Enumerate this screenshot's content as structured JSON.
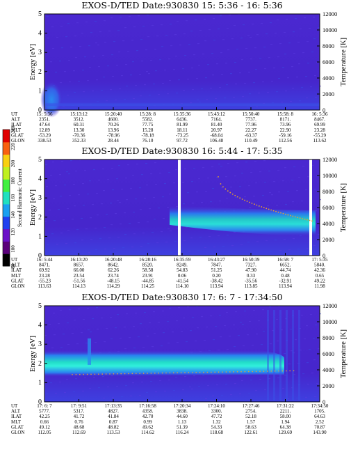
{
  "colors": {
    "background_low": "#4a2ad0",
    "low": "#3a52e8",
    "mid": "#2a8af0",
    "high": "#22d8c8",
    "peak": "#30f0e0",
    "dots": "#e8a030",
    "gap": "#ffffff"
  },
  "colorbar": {
    "label": "Second Harmonic Current",
    "ticks": [
      "80",
      "100",
      "120",
      "140",
      "160",
      "180",
      "200",
      "220",
      "240"
    ],
    "colors": [
      "#000000",
      "#5a007a",
      "#6a10c8",
      "#2040f0",
      "#1aa0f0",
      "#20e0c0",
      "#40f040",
      "#c0f020",
      "#f8d010",
      "#f86010",
      "#e00000"
    ]
  },
  "table_labels": [
    "UT",
    "ALT",
    "ILAT",
    "MLT",
    "GLAT",
    "GLON"
  ],
  "chart_data": [
    {
      "type": "heatmap",
      "title": "EXOS-D/TED    Date:930830  15: 5:36 - 16: 5:36",
      "ylabel": "Energy [eV]",
      "ylim": [
        0,
        5
      ],
      "yticks": [
        "0",
        "1",
        "2",
        "3",
        "4",
        "5"
      ],
      "y2label": "Temperature [K]",
      "y2lim": [
        0,
        12000
      ],
      "y2ticks": [
        "0",
        "2000",
        "4000",
        "6000",
        "8000",
        "10000",
        "12000"
      ],
      "columns": [
        [
          "15: 5:36",
          "2351.",
          "47.64",
          "12.89",
          "-53.29",
          "338.53"
        ],
        [
          "15:13:12",
          "3512.",
          "60.31",
          "13.30",
          "-70.36",
          "352.33"
        ],
        [
          "15:20:40",
          "4600.",
          "70.26",
          "13.96",
          "-78.96",
          "28.44"
        ],
        [
          "15:28: 8",
          "5582.",
          "77.75",
          "15.28",
          "-78.18",
          "76.10"
        ],
        [
          "15:35:36",
          "6436.",
          "81.99",
          "18.11",
          "-73.25",
          "97.72"
        ],
        [
          "15:43:12",
          "7164.",
          "81.40",
          "20.97",
          "-68.04",
          "106.48"
        ],
        [
          "15:50:40",
          "7737.",
          "77.96",
          "22.27",
          "-63.37",
          "110.49"
        ],
        [
          "15:58: 8",
          "8171.",
          "73.96",
          "22.90",
          "-59.16",
          "112.56"
        ],
        [
          "16: 5:36",
          "8467.",
          "69.99",
          "23.28",
          "-55.29",
          "113.62"
        ]
      ]
    },
    {
      "type": "heatmap",
      "title": "EXOS-D/TED    Date:930830  16: 5:44 - 17: 5:35",
      "ylabel": "Energy [eV]",
      "ylim": [
        0,
        5
      ],
      "yticks": [
        "0",
        "1",
        "2",
        "3",
        "4",
        "5"
      ],
      "y2label": "Temperature [K]",
      "y2lim": [
        0,
        12000
      ],
      "y2ticks": [
        "0",
        "2000",
        "4000",
        "6000",
        "8000",
        "10000",
        "12000"
      ],
      "columns": [
        [
          "16: 5:44",
          "8471.",
          "69.92",
          "23.28",
          "-55.23",
          "113.63"
        ],
        [
          "16:13:20",
          "8657.",
          "66.00",
          "23.54",
          "-51.56",
          "114.13"
        ],
        [
          "16:20:48",
          "8642.",
          "62.26",
          "23.74",
          "-48.15",
          "114.29"
        ],
        [
          "16:28:16",
          "8520.",
          "58.58",
          "23.91",
          "-44.85",
          "114.25"
        ],
        [
          "16:35:59",
          "8249.",
          "54.83",
          "0.06",
          "-41.54",
          "114.10"
        ],
        [
          "16:43:27",
          "7847.",
          "51.25",
          "0.20",
          "-38.42",
          "113.94"
        ],
        [
          "16:50:39",
          "7327.",
          "47.90",
          "0.33",
          "-35.56",
          "113.85"
        ],
        [
          "16:58: 7",
          "6652.",
          "44.74",
          "0.48",
          "-32.91",
          "113.94"
        ],
        [
          "17: 5:35",
          "5840.",
          "42.36",
          "0.65",
          "49.22",
          "11.98"
        ]
      ]
    },
    {
      "type": "heatmap",
      "title": "EXOS-D/TED    Date:930830  17: 6: 7 - 17:34:50",
      "ylabel": "Energy [eV]",
      "ylim": [
        0,
        5
      ],
      "yticks": [
        "0",
        "1",
        "2",
        "3",
        "4",
        "5"
      ],
      "y2label": "Temperature [K]",
      "y2lim": [
        0,
        12000
      ],
      "y2ticks": [
        "0",
        "2000",
        "4000",
        "6000",
        "8000",
        "10000",
        "12000"
      ],
      "columns": [
        [
          "17: 6: 7",
          "5777.",
          "42.25",
          "0.66",
          "49.12",
          "112.05"
        ],
        [
          "17: 9:51",
          "5317.",
          "41.72",
          "0.76",
          "48.68",
          "112.69"
        ],
        [
          "17:13:35",
          "4827.",
          "41.84",
          "0.87",
          "48.82",
          "113.53"
        ],
        [
          "17:16:58",
          "4358.",
          "42.70",
          "0.99",
          "49.62",
          "114.62"
        ],
        [
          "17:20:34",
          "3838.",
          "44.60",
          "1.13",
          "51.39",
          "116.24"
        ],
        [
          "17:24:10",
          "3300.",
          "47.72",
          "1.32",
          "54.33",
          "118.68"
        ],
        [
          "17:27:46",
          "2754.",
          "52.18",
          "1.57",
          "58.63",
          "122.61"
        ],
        [
          "17:31:22",
          "2211.",
          "58.00",
          "1.94",
          "64.38",
          "129.69"
        ],
        [
          "17:34:50",
          "1705.",
          "64.63",
          "2.52",
          "70.87",
          "143.90"
        ]
      ]
    }
  ]
}
